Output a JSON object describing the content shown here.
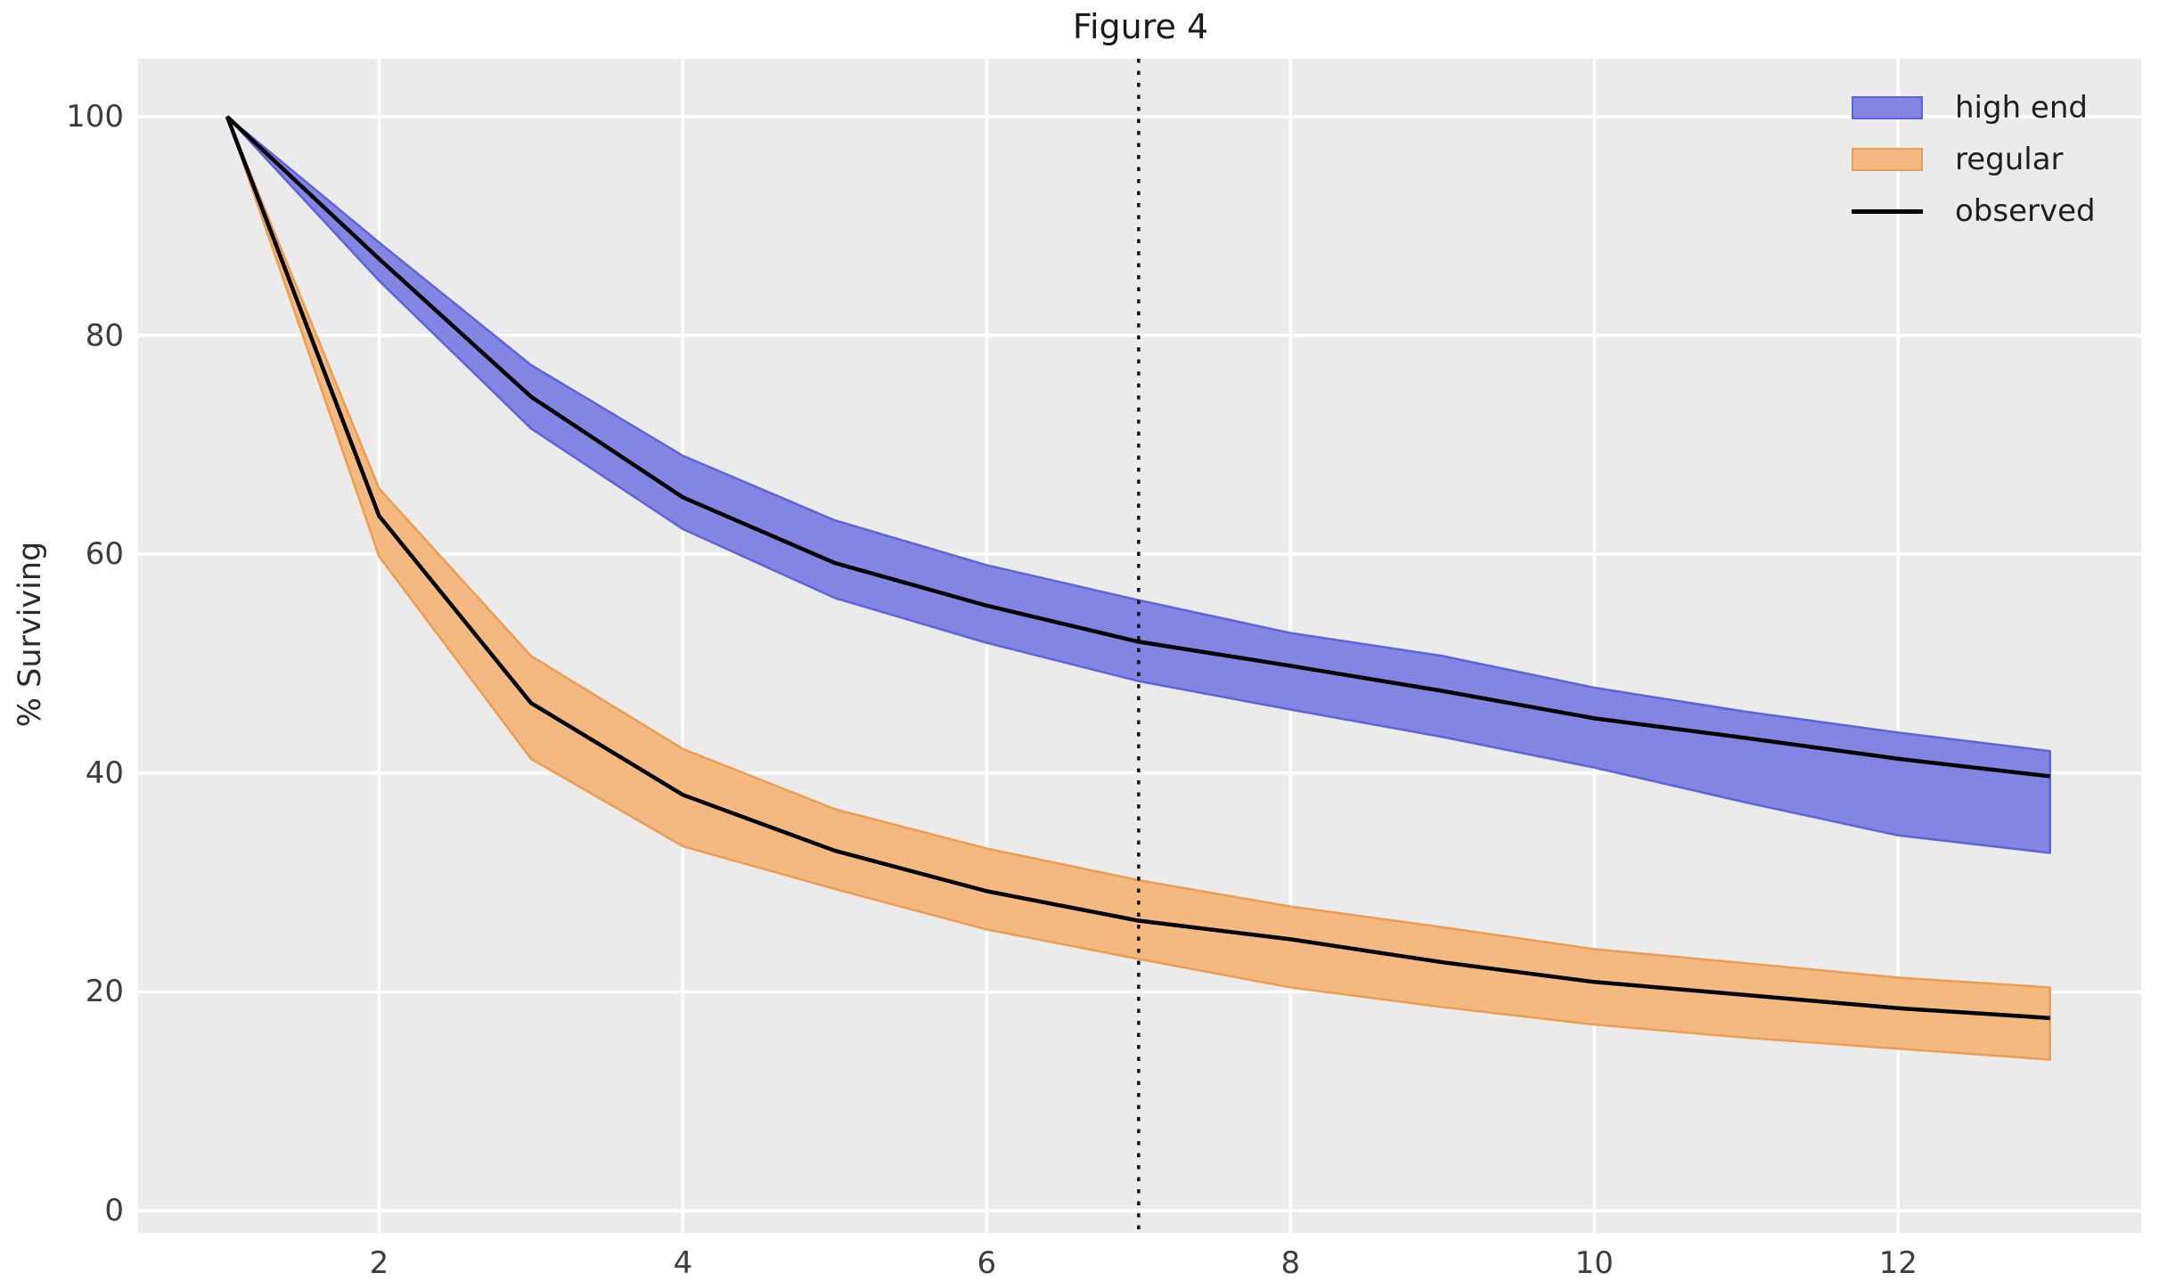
{
  "chart_data": {
    "type": "line",
    "title": "Figure 4",
    "xlabel": "",
    "ylabel": "% Surviving",
    "x": [
      1,
      2,
      3,
      4,
      5,
      6,
      7,
      8,
      9,
      10,
      11,
      12,
      13
    ],
    "xticks": [
      2,
      4,
      6,
      8,
      10,
      12
    ],
    "yticks": [
      0,
      20,
      40,
      60,
      80,
      100
    ],
    "xlim": [
      0.4135,
      13.6
    ],
    "ylim": [
      -2.04,
      105.29
    ],
    "grid": true,
    "background_color": "#ebebeb",
    "grid_color": "#ffffff",
    "vline": {
      "x": 7,
      "style": "dotted",
      "color": "#111111"
    },
    "series": [
      {
        "name": "high end",
        "kind": "band",
        "fill_color": "#8286e2",
        "edge_color": "#5d63da",
        "observed": [
          100,
          87.0,
          74.4,
          65.2,
          59.2,
          55.3,
          52.0,
          49.8,
          47.5,
          45.0,
          43.2,
          41.3,
          39.7
        ],
        "upper": [
          100,
          88.5,
          77.3,
          69.0,
          63.1,
          59.0,
          55.8,
          52.8,
          50.7,
          47.8,
          45.6,
          43.7,
          42.0
        ],
        "lower": [
          100,
          85.0,
          71.5,
          62.3,
          56.0,
          51.9,
          48.4,
          45.8,
          43.3,
          40.5,
          37.3,
          34.3,
          32.7
        ]
      },
      {
        "name": "regular",
        "kind": "band",
        "fill_color": "#f4b980",
        "edge_color": "#ec9d52",
        "observed": [
          100,
          63.5,
          46.4,
          38.0,
          32.9,
          29.2,
          26.5,
          24.8,
          22.7,
          20.9,
          19.7,
          18.5,
          17.6
        ],
        "upper": [
          100,
          66.0,
          50.7,
          42.2,
          36.7,
          33.1,
          30.2,
          27.8,
          25.9,
          23.9,
          22.6,
          21.3,
          20.4
        ],
        "lower": [
          100,
          59.8,
          41.3,
          33.3,
          29.4,
          25.7,
          23.0,
          20.4,
          18.6,
          17.0,
          15.8,
          14.8,
          13.8
        ]
      },
      {
        "name": "observed",
        "kind": "line",
        "color": "#000000"
      }
    ],
    "legend": {
      "position": "upper right",
      "entries": [
        {
          "label": "high end",
          "swatch": "patch-blue"
        },
        {
          "label": "regular",
          "swatch": "patch-orange"
        },
        {
          "label": "observed",
          "swatch": "line-black"
        }
      ]
    }
  }
}
